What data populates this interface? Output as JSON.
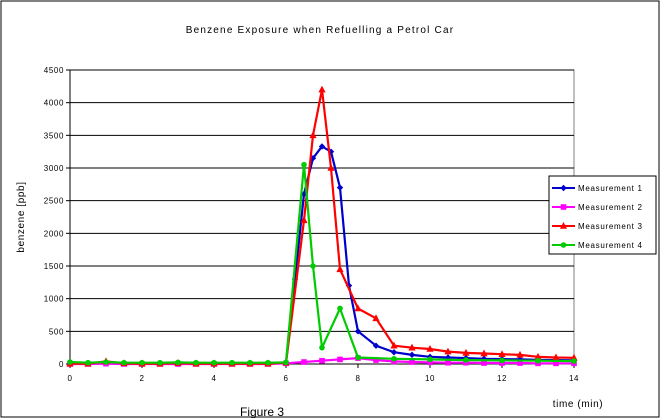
{
  "chart_data": {
    "type": "line",
    "title": "Benzene Exposure when Refuelling a Petrol Car",
    "xlabel": "time (min)",
    "ylabel": "benzene [ppb]",
    "xlim": [
      0,
      14
    ],
    "ylim": [
      0,
      4500
    ],
    "x_ticks": [
      "0",
      "2",
      "4",
      "6",
      "8",
      "10",
      "12",
      "14"
    ],
    "y_ticks": [
      "0",
      "500",
      "1000",
      "1500",
      "2000",
      "2500",
      "3000",
      "3500",
      "4000",
      "4500"
    ],
    "grid": "horizontal",
    "legend_position": "right",
    "series": [
      {
        "name": "Measurement 1",
        "color": "#0000cc",
        "marker": "diamond",
        "points": [
          [
            0,
            10
          ],
          [
            0.5,
            10
          ],
          [
            1,
            15
          ],
          [
            1.5,
            10
          ],
          [
            2,
            10
          ],
          [
            2.5,
            10
          ],
          [
            3,
            10
          ],
          [
            3.5,
            10
          ],
          [
            4,
            10
          ],
          [
            4.5,
            10
          ],
          [
            5,
            10
          ],
          [
            5.5,
            10
          ],
          [
            6,
            20
          ],
          [
            6.25,
            1300
          ],
          [
            6.5,
            2600
          ],
          [
            6.75,
            3150
          ],
          [
            7,
            3330
          ],
          [
            7.25,
            3250
          ],
          [
            7.5,
            2700
          ],
          [
            7.75,
            1200
          ],
          [
            8,
            500
          ],
          [
            8.5,
            280
          ],
          [
            9,
            180
          ],
          [
            9.5,
            140
          ],
          [
            10,
            110
          ],
          [
            10.5,
            100
          ],
          [
            11,
            90
          ],
          [
            11.5,
            80
          ],
          [
            12,
            75
          ],
          [
            12.5,
            70
          ],
          [
            13,
            65
          ],
          [
            13.5,
            60
          ],
          [
            14,
            55
          ]
        ]
      },
      {
        "name": "Measurement 2",
        "color": "#ff00ff",
        "marker": "square",
        "points": [
          [
            0,
            0
          ],
          [
            0.5,
            0
          ],
          [
            1,
            5
          ],
          [
            1.5,
            0
          ],
          [
            2,
            0
          ],
          [
            2.5,
            0
          ],
          [
            3,
            0
          ],
          [
            3.5,
            0
          ],
          [
            4,
            0
          ],
          [
            4.5,
            0
          ],
          [
            5,
            0
          ],
          [
            5.5,
            0
          ],
          [
            6,
            10
          ],
          [
            6.5,
            30
          ],
          [
            7,
            50
          ],
          [
            7.5,
            70
          ],
          [
            8,
            90
          ],
          [
            8.5,
            60
          ],
          [
            9,
            40
          ],
          [
            9.5,
            30
          ],
          [
            10,
            25
          ],
          [
            10.5,
            20
          ],
          [
            11,
            20
          ],
          [
            11.5,
            15
          ],
          [
            12,
            15
          ],
          [
            12.5,
            15
          ],
          [
            13,
            10
          ],
          [
            13.5,
            10
          ],
          [
            14,
            10
          ]
        ]
      },
      {
        "name": "Measurement 3",
        "color": "#ff0000",
        "marker": "triangle",
        "points": [
          [
            0,
            5
          ],
          [
            0.5,
            5
          ],
          [
            1,
            40
          ],
          [
            1.5,
            10
          ],
          [
            2,
            5
          ],
          [
            2.5,
            5
          ],
          [
            3,
            15
          ],
          [
            3.5,
            5
          ],
          [
            4,
            5
          ],
          [
            4.5,
            5
          ],
          [
            5,
            5
          ],
          [
            5.5,
            5
          ],
          [
            6,
            20
          ],
          [
            6.5,
            2200
          ],
          [
            6.75,
            3500
          ],
          [
            7,
            4200
          ],
          [
            7.25,
            3000
          ],
          [
            7.5,
            1450
          ],
          [
            8,
            850
          ],
          [
            8.5,
            700
          ],
          [
            9,
            280
          ],
          [
            9.5,
            250
          ],
          [
            10,
            230
          ],
          [
            10.5,
            190
          ],
          [
            11,
            170
          ],
          [
            11.5,
            160
          ],
          [
            12,
            150
          ],
          [
            12.5,
            140
          ],
          [
            13,
            110
          ],
          [
            13.5,
            100
          ],
          [
            14,
            95
          ]
        ]
      },
      {
        "name": "Measurement 4",
        "color": "#00cc00",
        "marker": "circle",
        "points": [
          [
            0,
            30
          ],
          [
            0.5,
            20
          ],
          [
            1,
            30
          ],
          [
            1.5,
            20
          ],
          [
            2,
            20
          ],
          [
            2.5,
            20
          ],
          [
            3,
            25
          ],
          [
            3.5,
            20
          ],
          [
            4,
            20
          ],
          [
            4.5,
            20
          ],
          [
            5,
            20
          ],
          [
            5.5,
            20
          ],
          [
            6,
            25
          ],
          [
            6.5,
            3050
          ],
          [
            6.75,
            1500
          ],
          [
            7,
            250
          ],
          [
            7.5,
            850
          ],
          [
            8,
            100
          ],
          [
            9,
            80
          ],
          [
            10,
            70
          ],
          [
            11,
            60
          ],
          [
            12,
            55
          ],
          [
            13,
            50
          ],
          [
            14,
            45
          ]
        ]
      }
    ]
  },
  "caption": "Figure 3"
}
